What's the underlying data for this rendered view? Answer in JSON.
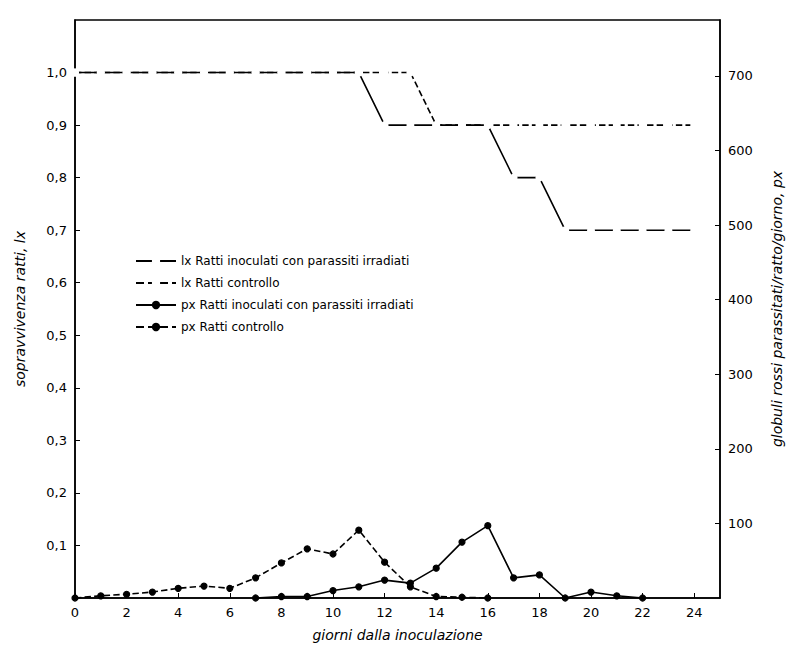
{
  "chart_data": {
    "type": "line",
    "x_label": "giorni dalla inoculazione",
    "y_label": "sopravvivenza ratti, lx",
    "y2_label": "globuli rossi parassitati/ratto/giorno, px",
    "x": [
      0,
      1,
      2,
      3,
      4,
      5,
      6,
      7,
      8,
      9,
      10,
      11,
      12,
      13,
      14,
      15,
      16,
      17,
      18,
      19,
      20,
      21,
      22,
      23,
      24
    ],
    "xlim": [
      0,
      25
    ],
    "xticks": [
      0,
      2,
      4,
      6,
      8,
      10,
      12,
      14,
      16,
      18,
      20,
      22,
      24
    ],
    "ylim": [
      0,
      1.1
    ],
    "yticks": [
      {
        "value": 0.1,
        "label": "0,1"
      },
      {
        "value": 0.2,
        "label": "0,2"
      },
      {
        "value": 0.3,
        "label": "0,3"
      },
      {
        "value": 0.4,
        "label": "0,4"
      },
      {
        "value": 0.5,
        "label": "0,5"
      },
      {
        "value": 0.6,
        "label": "0,6"
      },
      {
        "value": 0.7,
        "label": "0,7"
      },
      {
        "value": 0.8,
        "label": "0,8"
      },
      {
        "value": 0.9,
        "label": "0,9"
      },
      {
        "value": 1.0,
        "label": "1,0"
      }
    ],
    "y2lim": [
      0,
      775
    ],
    "y2ticks": [
      100,
      200,
      300,
      400,
      500,
      600,
      700
    ],
    "grid": false,
    "legend": "left",
    "series": [
      {
        "name": "lx Ratti inoculati con parassiti irradiati",
        "color": "#000000",
        "line_style": "solid",
        "marker": "circle-open",
        "values": [
          1.0,
          1.0,
          1.0,
          1.0,
          1.0,
          1.0,
          1.0,
          1.0,
          1.0,
          1.0,
          1.0,
          1.0,
          0.9,
          0.9,
          0.9,
          0.9,
          0.9,
          0.8,
          0.8,
          0.7,
          0.7,
          0.7,
          0.7,
          0.7,
          0.7
        ]
      },
      {
        "name": "lx Ratti controllo",
        "color": "#000000",
        "line_style": "dashed",
        "marker": "circle-open",
        "values": [
          1.0,
          1.0,
          1.0,
          1.0,
          1.0,
          1.0,
          1.0,
          1.0,
          1.0,
          1.0,
          1.0,
          1.0,
          1.0,
          1.0,
          0.9,
          0.9,
          0.9,
          0.9,
          0.9,
          0.9,
          0.9,
          0.9,
          0.9,
          0.9,
          0.9
        ]
      },
      {
        "name": "px Ratti inoculati con parassiti irradiati",
        "color": "#000000",
        "line_style": "solid",
        "marker": "circle-filled",
        "axis": "y2",
        "values": [
          null,
          null,
          null,
          null,
          null,
          null,
          null,
          0,
          2,
          2,
          10,
          15,
          24,
          20,
          40,
          75,
          97,
          27,
          31,
          0,
          8,
          3,
          0,
          null,
          null
        ]
      },
      {
        "name": "px Ratti controllo",
        "color": "#000000",
        "line_style": "dashed",
        "marker": "circle-filled",
        "axis": "y2",
        "values": [
          0,
          3,
          5,
          8,
          13,
          16,
          13,
          27,
          47,
          66,
          59,
          91,
          48,
          15,
          2,
          1,
          0,
          null,
          null,
          null,
          null,
          null,
          null,
          null,
          null
        ]
      }
    ]
  }
}
